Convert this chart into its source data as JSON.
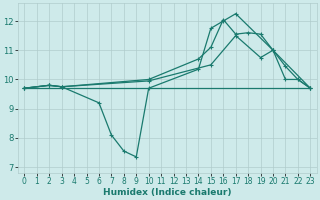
{
  "xlabel": "Humidex (Indice chaleur)",
  "xlim": [
    -0.5,
    23.5
  ],
  "ylim": [
    6.8,
    12.6
  ],
  "yticks": [
    7,
    8,
    9,
    10,
    11,
    12
  ],
  "xticks": [
    0,
    1,
    2,
    3,
    4,
    5,
    6,
    7,
    8,
    9,
    10,
    11,
    12,
    13,
    14,
    15,
    16,
    17,
    18,
    19,
    20,
    21,
    22,
    23
  ],
  "background_color": "#ceeaea",
  "grid_color": "#b0cccc",
  "line_color": "#1a7a6e",
  "flat_line": {
    "x": [
      0,
      23
    ],
    "y": [
      9.7,
      9.7
    ]
  },
  "line_dip": {
    "x": [
      0,
      2,
      3,
      6,
      7,
      8,
      9,
      10,
      14,
      15,
      16,
      17,
      20,
      21,
      22,
      23
    ],
    "y": [
      9.7,
      9.8,
      9.75,
      9.2,
      8.1,
      7.55,
      7.35,
      9.7,
      10.35,
      11.75,
      12.0,
      12.25,
      11.0,
      10.0,
      10.0,
      9.7
    ]
  },
  "line_rise1": {
    "x": [
      0,
      2,
      3,
      10,
      14,
      15,
      16,
      17,
      18,
      19,
      20,
      23
    ],
    "y": [
      9.7,
      9.8,
      9.75,
      10.0,
      10.7,
      11.1,
      12.05,
      11.55,
      11.6,
      11.55,
      11.0,
      9.7
    ]
  },
  "line_rise2": {
    "x": [
      0,
      2,
      3,
      10,
      15,
      17,
      19,
      20,
      21,
      22,
      23
    ],
    "y": [
      9.7,
      9.8,
      9.75,
      9.95,
      10.5,
      11.5,
      10.75,
      11.0,
      10.45,
      10.0,
      9.7
    ]
  }
}
